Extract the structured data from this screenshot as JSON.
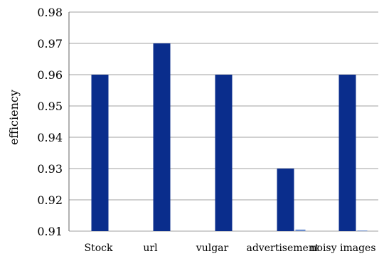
{
  "chart_data": {
    "type": "bar",
    "title": "",
    "xlabel": "",
    "ylabel": "efficiency",
    "ylim": [
      0.91,
      0.98
    ],
    "yticks": [
      "0.91",
      "0.92",
      "0.93",
      "0.94",
      "0.95",
      "0.96",
      "0.97",
      "0.98"
    ],
    "grid": true,
    "categories": [
      "Stock",
      "url",
      "vulgar",
      "advertisement",
      "noisy images"
    ],
    "series": [
      {
        "values": [
          0.96,
          0.97,
          0.96,
          0.93,
          0.96
        ]
      },
      {
        "values": [
          null,
          null,
          null,
          0.9105,
          0.9102
        ]
      }
    ],
    "colors": {
      "series": [
        "#0a2d8c",
        "#6a8ccc"
      ],
      "grid": "#a0a0a0",
      "axis": "#666666"
    }
  }
}
